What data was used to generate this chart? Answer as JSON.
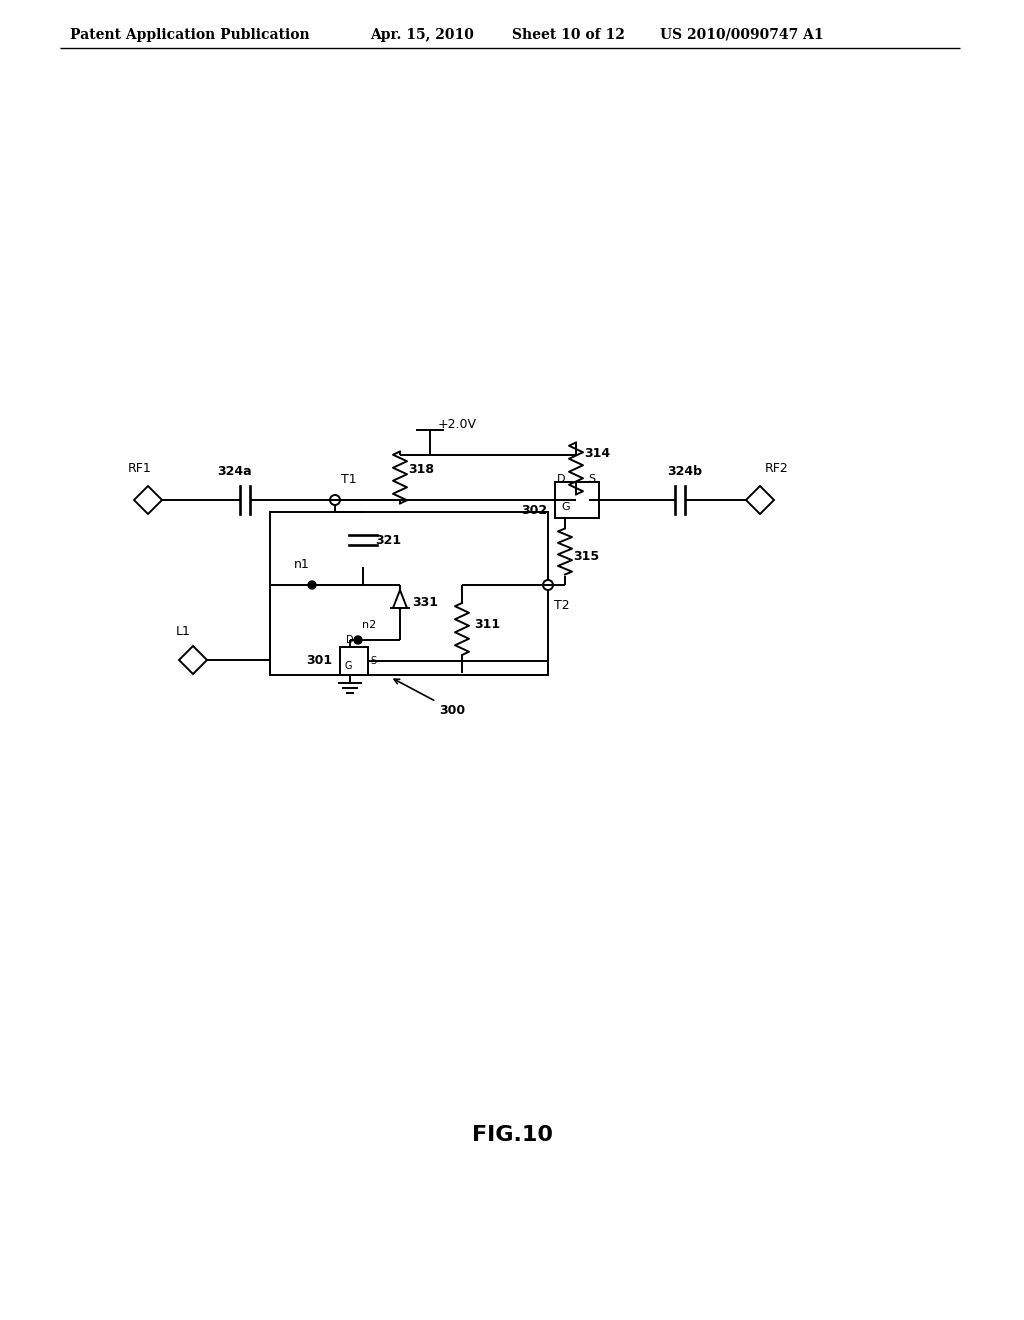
{
  "background_color": "#ffffff",
  "line_color": "#000000",
  "header_text": "Patent Application Publication",
  "header_date": "Apr. 15, 2010",
  "header_sheet": "Sheet 10 of 12",
  "header_patent": "US 2010/0090747 A1",
  "figure_label": "FIG.10",
  "header_fontsize": 10,
  "fig_label_fontsize": 16,
  "label_fontsize": 9
}
